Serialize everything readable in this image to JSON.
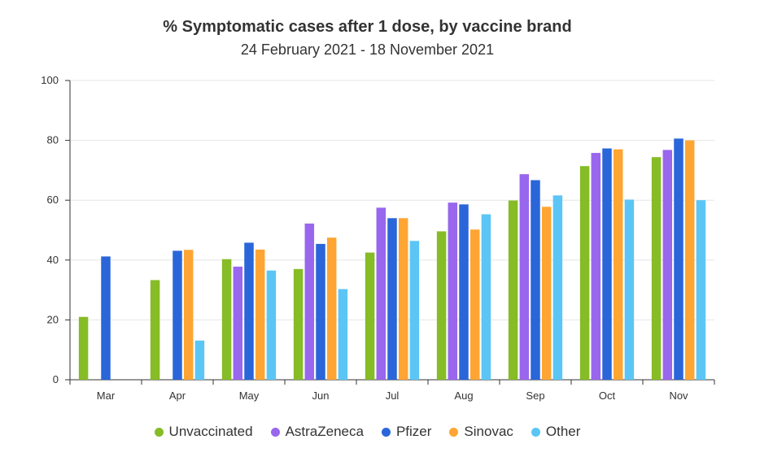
{
  "chart_data": {
    "type": "bar",
    "title": "% Symptomatic cases after 1 dose, by vaccine brand",
    "subtitle": "24 February 2021 - 18 November 2021",
    "xlabel": "",
    "ylabel": "",
    "ylim": [
      0,
      100
    ],
    "yticks": [
      0,
      20,
      40,
      60,
      80,
      100
    ],
    "grid": true,
    "legend_position": "bottom",
    "categories": [
      "Mar",
      "Apr",
      "May",
      "Jun",
      "Jul",
      "Aug",
      "Sep",
      "Oct",
      "Nov"
    ],
    "series": [
      {
        "name": "Unvaccinated",
        "color": "#86bc25",
        "values": [
          21,
          33.3,
          40.3,
          37,
          42.5,
          49.6,
          59.9,
          71.4,
          74.4
        ]
      },
      {
        "name": "AstraZeneca",
        "color": "#9966ee",
        "values": [
          null,
          null,
          37.8,
          52.2,
          57.5,
          59.2,
          68.7,
          75.8,
          76.8
        ]
      },
      {
        "name": "Pfizer",
        "color": "#2a66d9",
        "values": [
          41.2,
          43.1,
          45.8,
          45.4,
          54,
          58.6,
          66.7,
          77.3,
          80.6
        ]
      },
      {
        "name": "Sinovac",
        "color": "#ffa533",
        "values": [
          null,
          43.4,
          43.5,
          47.5,
          54,
          50.2,
          57.8,
          77,
          80
        ]
      },
      {
        "name": "Other",
        "color": "#5bc6f5",
        "values": [
          null,
          13.1,
          36.5,
          30.3,
          46.4,
          55.3,
          61.6,
          60.2,
          60
        ]
      }
    ]
  }
}
